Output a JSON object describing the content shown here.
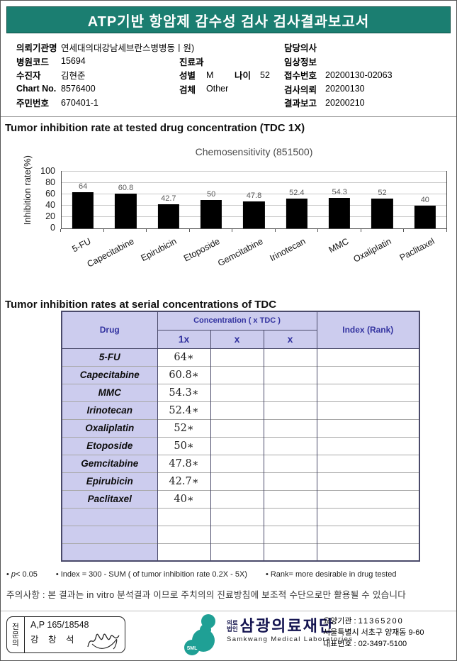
{
  "header": {
    "title": "ATP기반 항암제 감수성 검사 검사결과보고서"
  },
  "patient_info": {
    "left": [
      {
        "label": "의뢰기관명",
        "value": "연세대의대강남세브란스병병동ㅣ원)"
      },
      {
        "label": "병원코드",
        "value": "15694"
      },
      {
        "label": "수진자",
        "value": "김현준"
      },
      {
        "label": "Chart No.",
        "value": "8576400"
      },
      {
        "label": "주민번호",
        "value": "670401-1"
      }
    ],
    "mid": {
      "dept_label": "진료과",
      "dept_value": "",
      "sex_label": "성별",
      "sex_value": "M",
      "age_label": "나이",
      "age_value": "52",
      "specimen_label": "검체",
      "specimen_value": "Other"
    },
    "right": [
      {
        "label": "담당의사",
        "value": ""
      },
      {
        "label": "임상정보",
        "value": ""
      },
      {
        "label": "접수번호",
        "value": "20200130-02063"
      },
      {
        "label": "검사의뢰",
        "value": "20200130"
      },
      {
        "label": "결과보고",
        "value": "20200210"
      }
    ]
  },
  "section1": {
    "title": "Tumor inhibition rate at tested drug concentration (TDC 1X)"
  },
  "chart_data": {
    "type": "bar",
    "title": "Chemosensitivity (851500)",
    "categories": [
      "5-FU",
      "Capecitabine",
      "Epirubicin",
      "Etoposide",
      "Gemcitabine",
      "Irinotecan",
      "MMC",
      "Oxaliplatin",
      "Paclitaxel"
    ],
    "values": [
      64,
      60.8,
      42.7,
      50,
      47.8,
      52.4,
      54.3,
      52,
      40
    ],
    "xlabel": "",
    "ylabel": "Inhibition rate(%)",
    "ylim": [
      0,
      100
    ],
    "yticks": [
      0,
      20,
      40,
      60,
      80,
      100
    ],
    "grid": true,
    "bar_color": "#000000",
    "legend": false
  },
  "section2": {
    "title": "Tumor inhibition rates at serial concentrations of TDC"
  },
  "table": {
    "col_drug": "Drug",
    "col_concentration": "Concentration ( x TDC )",
    "sub_cols": [
      "1x",
      "x",
      "x"
    ],
    "col_index": "Index (Rank)",
    "rows": [
      {
        "drug": "5-FU",
        "c1": "64∗",
        "c2": "",
        "c3": "",
        "index": ""
      },
      {
        "drug": "Capecitabine",
        "c1": "60.8∗",
        "c2": "",
        "c3": "",
        "index": ""
      },
      {
        "drug": "MMC",
        "c1": "54.3∗",
        "c2": "",
        "c3": "",
        "index": ""
      },
      {
        "drug": "Irinotecan",
        "c1": "52.4∗",
        "c2": "",
        "c3": "",
        "index": ""
      },
      {
        "drug": "Oxaliplatin",
        "c1": "52∗",
        "c2": "",
        "c3": "",
        "index": ""
      },
      {
        "drug": "Etoposide",
        "c1": "50∗",
        "c2": "",
        "c3": "",
        "index": ""
      },
      {
        "drug": "Gemcitabine",
        "c1": "47.8∗",
        "c2": "",
        "c3": "",
        "index": ""
      },
      {
        "drug": "Epirubicin",
        "c1": "42.7∗",
        "c2": "",
        "c3": "",
        "index": ""
      },
      {
        "drug": "Paclitaxel",
        "c1": "40∗",
        "c2": "",
        "c3": "",
        "index": ""
      },
      {
        "drug": "",
        "c1": "",
        "c2": "",
        "c3": "",
        "index": ""
      },
      {
        "drug": "",
        "c1": "",
        "c2": "",
        "c3": "",
        "index": ""
      },
      {
        "drug": "",
        "c1": "",
        "c2": "",
        "c3": "",
        "index": ""
      }
    ]
  },
  "footnotes": {
    "p_italic": "p",
    "p_rest": "< 0.05",
    "index_note": "Index = 300 - SUM ( of tumor inhibition rate 0.2X  -  5X)",
    "rank_note": "Rank= more desirable in drug tested",
    "caution_label": "주의사항 :",
    "caution_text": "본 결과는 in vitro 분석결과 이므로 주치의의 진료방침에 보조적 수단으로만 활용될 수 있습니다"
  },
  "footer": {
    "stamp": {
      "vertical_label": "전문의",
      "line1": "A,P 165/18548",
      "line2": "강 창 석"
    },
    "logo": {
      "mark_text": "SML",
      "org_small_top": "의료",
      "org_small_bottom": "법인",
      "org_name": "삼광의료재단",
      "org_en": "Samkwang Medical Laboratories"
    },
    "contact_line1_label": "요양기관 :",
    "contact_line1_value": "11365200",
    "contact_line2": "서울특별시 서초구 양재동 9-60",
    "contact_line3_label": "대표번호 :",
    "contact_line3_value": "02-3497-5100"
  },
  "colors": {
    "banner": "#1b7e71",
    "table_header_bg": "#ccccee",
    "table_header_text": "#3333a0",
    "logo_teal": "#1fa095"
  }
}
